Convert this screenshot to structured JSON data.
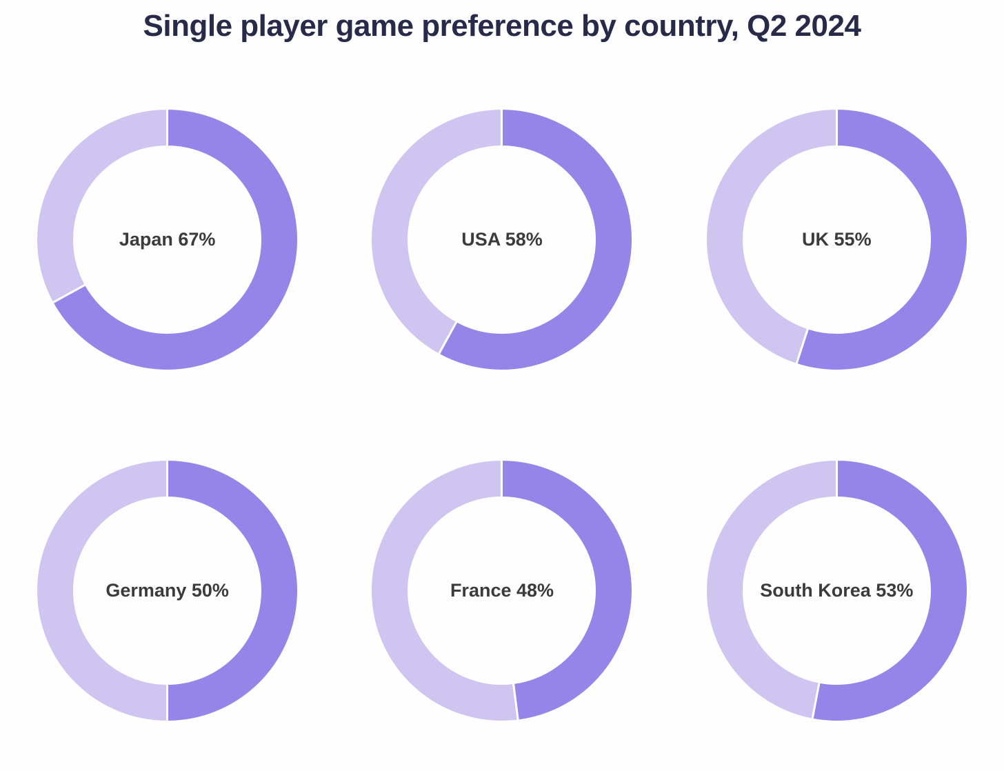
{
  "header": {
    "title": "Single player game preference by country, Q2 2024",
    "title_color": "#272b49"
  },
  "chart_data": {
    "type": "pie",
    "variant": "donut-small-multiples",
    "title": "Single player game preference by country, Q2 2024",
    "unit": "%",
    "legend": "none",
    "grid": "off",
    "start_angle": "12-oclock",
    "direction": "clockwise",
    "layout": "2 rows x 3 columns",
    "categories": [
      "Japan",
      "USA",
      "UK",
      "Germany",
      "France",
      "South Korea"
    ],
    "values": [
      67,
      58,
      55,
      50,
      48,
      53
    ],
    "colors": {
      "value_segment": "#9685e8",
      "remainder_segment": "#d0c5f0",
      "segment_gap": "#ffffff",
      "label_text": "#3b3b3b"
    },
    "items": [
      {
        "country": "Japan",
        "value": 67,
        "remainder": 33,
        "label": "Japan 67%"
      },
      {
        "country": "USA",
        "value": 58,
        "remainder": 42,
        "label": "USA 58%"
      },
      {
        "country": "UK",
        "value": 55,
        "remainder": 45,
        "label": "UK 55%"
      },
      {
        "country": "Germany",
        "value": 50,
        "remainder": 50,
        "label": "Germany 50%"
      },
      {
        "country": "France",
        "value": 48,
        "remainder": 52,
        "label": "France 48%"
      },
      {
        "country": "South Korea",
        "value": 53,
        "remainder": 47,
        "label": "South Korea 53%"
      }
    ]
  }
}
